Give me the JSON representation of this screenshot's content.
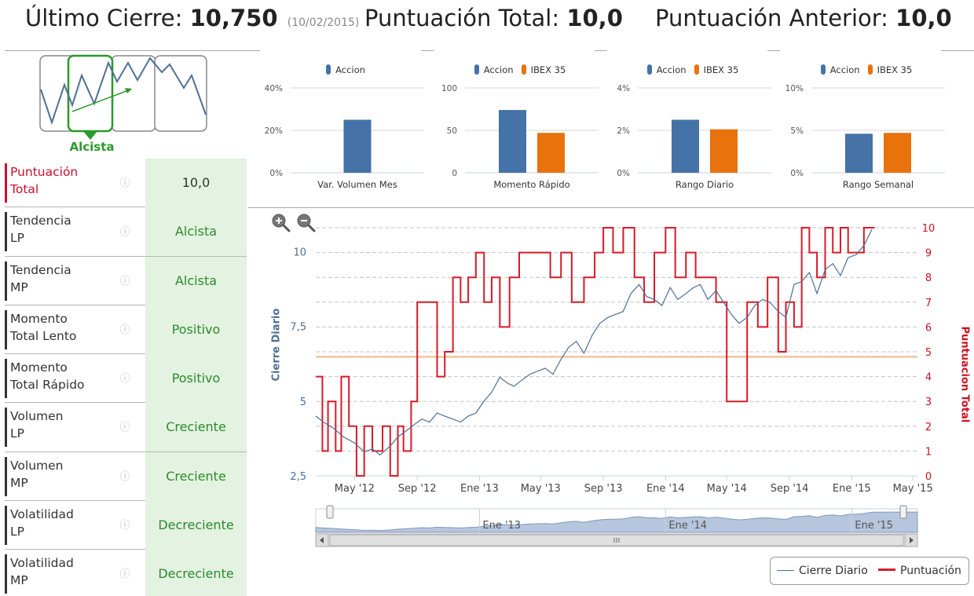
{
  "header": {
    "last_close_label": "Último Cierre:",
    "last_close_value": "10,750",
    "last_close_date": "(10/02/2015)",
    "total_score_label": "Puntuación Total:",
    "total_score_value": "10,0",
    "prev_score_label": "Puntuación Anterior:",
    "prev_score_value": "10,0"
  },
  "trend": {
    "label": "Alcista",
    "icon": "uptrend-chart-icon",
    "color": "#2a9a2a"
  },
  "info_icon": "ⓘ",
  "metrics": [
    {
      "name_line1": "Puntuación",
      "name_line2": "Total",
      "value": "10,0"
    },
    {
      "name_line1": "Tendencia",
      "name_line2": "LP",
      "value": "Alcista"
    },
    {
      "name_line1": "Tendencia",
      "name_line2": "MP",
      "value": "Alcista"
    },
    {
      "name_line1": "Momento",
      "name_line2": "Total Lento",
      "value": "Positivo"
    },
    {
      "name_line1": "Momento",
      "name_line2": "Total Rápido",
      "value": "Positivo"
    },
    {
      "name_line1": "Volumen",
      "name_line2": "LP",
      "value": "Creciente"
    },
    {
      "name_line1": "Volumen",
      "name_line2": "MP",
      "value": "Creciente"
    },
    {
      "name_line1": "Volatilidad",
      "name_line2": "LP",
      "value": "Decreciente"
    },
    {
      "name_line1": "Volatilidad",
      "name_line2": "MP",
      "value": "Decreciente"
    }
  ],
  "colors": {
    "accion": "#4572a7",
    "ibex": "#e8720c",
    "cierre": "#4f6f95",
    "puntuacion": "#d71a28",
    "ref_line": "#f0c4a0"
  },
  "chart_data": [
    {
      "type": "bar",
      "categories": [
        "Var. Volumen Mes"
      ],
      "series": [
        {
          "name": "Accion",
          "values": [
            25
          ]
        }
      ],
      "ylim": [
        0,
        40
      ],
      "yticks": [
        "0%",
        "20%",
        "40%"
      ]
    },
    {
      "type": "bar",
      "categories": [
        "Momento Rápido"
      ],
      "series": [
        {
          "name": "Accion",
          "values": [
            74
          ]
        },
        {
          "name": "IBEX 35",
          "values": [
            47
          ]
        }
      ],
      "ylim": [
        0,
        100
      ],
      "yticks": [
        "0",
        "50",
        "100"
      ]
    },
    {
      "type": "bar",
      "categories": [
        "Rango Diario"
      ],
      "series": [
        {
          "name": "Accion",
          "values": [
            2.5
          ]
        },
        {
          "name": "IBEX 35",
          "values": [
            2.05
          ]
        }
      ],
      "ylim": [
        0,
        4
      ],
      "yticks": [
        "0%",
        "2%",
        "4%"
      ]
    },
    {
      "type": "bar",
      "categories": [
        "Rango Semanal"
      ],
      "series": [
        {
          "name": "Accion",
          "values": [
            4.6
          ]
        },
        {
          "name": "IBEX 35",
          "values": [
            4.7
          ]
        }
      ],
      "ylim": [
        0,
        10
      ],
      "yticks": [
        "0%",
        "5%",
        "10%"
      ]
    },
    {
      "type": "line",
      "ylabel": "Cierre Diario",
      "y2label": "Puntuacion Total",
      "ylim": [
        2.5,
        10.8
      ],
      "y2lim": [
        0,
        10
      ],
      "yticks": [
        "2,5",
        "5",
        "7,5",
        "10"
      ],
      "y2ticks": [
        "0",
        "1",
        "2",
        "3",
        "4",
        "5",
        "6",
        "7",
        "8",
        "9",
        "10"
      ],
      "xticks": [
        "May '12",
        "Sep '12",
        "Ene '13",
        "May '13",
        "Sep '13",
        "Ene '14",
        "May '14",
        "Sep '14",
        "Ene '15",
        "May '15"
      ],
      "xlim": [
        "2012-02-15",
        "2015-05-10"
      ],
      "reference_line_y2": 4.8,
      "navigator_labels": [
        "Ene '13",
        "Ene '14",
        "Ene '15"
      ],
      "series": [
        {
          "name": "Cierre Diario",
          "x": [
            "2012-02-15",
            "2012-03-01",
            "2012-03-20",
            "2012-04-10",
            "2012-05-01",
            "2012-05-20",
            "2012-06-05",
            "2012-06-20",
            "2012-07-10",
            "2012-07-25",
            "2012-08-10",
            "2012-08-25",
            "2012-09-10",
            "2012-09-25",
            "2012-10-10",
            "2012-10-25",
            "2012-11-10",
            "2012-11-25",
            "2012-12-10",
            "2012-12-25",
            "2013-01-10",
            "2013-01-25",
            "2013-02-10",
            "2013-02-25",
            "2013-03-10",
            "2013-03-25",
            "2013-04-10",
            "2013-04-25",
            "2013-05-10",
            "2013-05-25",
            "2013-06-10",
            "2013-06-25",
            "2013-07-10",
            "2013-07-25",
            "2013-08-10",
            "2013-08-25",
            "2013-09-10",
            "2013-09-25",
            "2013-10-10",
            "2013-10-25",
            "2013-11-10",
            "2013-11-25",
            "2013-12-10",
            "2013-12-25",
            "2014-01-10",
            "2014-01-25",
            "2014-02-10",
            "2014-02-25",
            "2014-03-10",
            "2014-03-25",
            "2014-04-10",
            "2014-04-25",
            "2014-05-10",
            "2014-05-25",
            "2014-06-10",
            "2014-06-25",
            "2014-07-10",
            "2014-07-25",
            "2014-08-10",
            "2014-08-25",
            "2014-09-10",
            "2014-09-25",
            "2014-10-10",
            "2014-10-25",
            "2014-11-10",
            "2014-11-25",
            "2014-12-10",
            "2014-12-25",
            "2015-01-10",
            "2015-01-25",
            "2015-02-10"
          ],
          "values": [
            4.5,
            4.3,
            4.1,
            3.8,
            3.6,
            3.3,
            3.4,
            3.2,
            3.5,
            3.8,
            4.0,
            4.2,
            4.4,
            4.3,
            4.6,
            4.5,
            4.4,
            4.3,
            4.5,
            4.6,
            5.0,
            5.3,
            5.8,
            5.6,
            5.5,
            5.7,
            5.9,
            6.0,
            6.1,
            5.9,
            6.4,
            6.8,
            7.0,
            6.6,
            7.2,
            7.6,
            7.8,
            7.9,
            8.0,
            8.6,
            8.9,
            8.5,
            8.4,
            8.2,
            8.8,
            8.4,
            8.6,
            8.8,
            8.9,
            8.4,
            8.7,
            8.3,
            7.9,
            7.6,
            7.8,
            8.2,
            8.4,
            8.3,
            8.0,
            7.8,
            8.9,
            9.0,
            9.3,
            8.6,
            9.4,
            9.6,
            9.2,
            9.8,
            9.9,
            10.2,
            10.75
          ]
        },
        {
          "name": "Puntuación",
          "x": [
            "2012-02-15",
            "2012-02-28",
            "2012-03-10",
            "2012-03-25",
            "2012-04-05",
            "2012-04-20",
            "2012-05-05",
            "2012-05-20",
            "2012-06-05",
            "2012-06-25",
            "2012-07-10",
            "2012-07-25",
            "2012-08-05",
            "2012-08-20",
            "2012-09-01",
            "2012-09-20",
            "2012-10-10",
            "2012-10-25",
            "2012-11-10",
            "2012-11-25",
            "2012-12-10",
            "2012-12-25",
            "2013-01-10",
            "2013-01-25",
            "2013-02-10",
            "2013-03-01",
            "2013-03-20",
            "2013-04-10",
            "2013-05-01",
            "2013-05-20",
            "2013-06-10",
            "2013-07-01",
            "2013-07-25",
            "2013-08-15",
            "2013-09-01",
            "2013-09-20",
            "2013-10-10",
            "2013-11-01",
            "2013-11-20",
            "2013-12-10",
            "2014-01-01",
            "2014-01-20",
            "2014-02-10",
            "2014-03-01",
            "2014-03-20",
            "2014-04-10",
            "2014-05-01",
            "2014-05-20",
            "2014-06-10",
            "2014-07-01",
            "2014-07-20",
            "2014-08-10",
            "2014-08-25",
            "2014-09-10",
            "2014-09-25",
            "2014-10-10",
            "2014-10-25",
            "2014-11-10",
            "2014-11-25",
            "2014-12-10",
            "2014-12-25",
            "2015-01-10",
            "2015-01-25",
            "2015-02-10"
          ],
          "values": [
            4,
            1,
            3,
            1,
            4,
            2,
            0,
            2,
            1,
            2,
            0,
            2,
            1,
            3,
            7,
            7,
            4,
            5,
            8,
            7,
            8,
            9,
            7,
            8,
            6,
            8,
            9,
            9,
            9,
            8,
            9,
            7,
            8,
            9,
            10,
            9,
            10,
            8,
            7,
            9,
            10,
            8,
            9,
            8,
            8,
            7,
            3,
            3,
            7,
            6,
            8,
            5,
            7,
            6,
            10,
            9,
            8,
            10,
            9,
            10,
            9,
            9,
            10,
            10
          ]
        }
      ]
    }
  ],
  "main_legend": {
    "item1": "Cierre Diario",
    "item2": "Puntuación"
  }
}
